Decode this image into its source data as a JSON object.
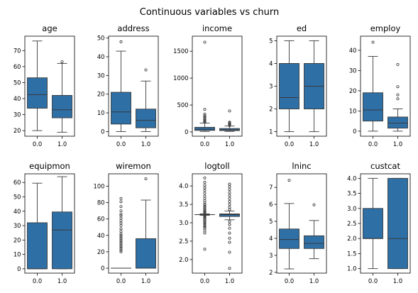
{
  "figure": {
    "title": "Continuous variables vs churn"
  },
  "colors": {
    "box_fill": "#2e6fa6",
    "line": "#3a3a3a",
    "axes": "#000000"
  },
  "chart_data": [
    {
      "type": "box",
      "title": "age",
      "categories": [
        "0.0",
        "1.0"
      ],
      "ylim": [
        16.5,
        79
      ],
      "yticks": [
        20,
        30,
        40,
        50,
        60,
        70
      ],
      "boxes": [
        {
          "whislo": 20,
          "q1": 34,
          "med": 42.5,
          "q3": 53,
          "whishi": 76,
          "fliers": []
        },
        {
          "whislo": 19,
          "q1": 28,
          "med": 33,
          "q3": 42,
          "whishi": 62,
          "fliers": [
            63
          ]
        }
      ]
    },
    {
      "type": "box",
      "title": "address",
      "categories": [
        "0.0",
        "1.0"
      ],
      "ylim": [
        -2.5,
        51
      ],
      "yticks": [
        0,
        10,
        20,
        30,
        40,
        50
      ],
      "boxes": [
        {
          "whislo": 0,
          "q1": 4,
          "med": 10.5,
          "q3": 21,
          "whishi": 43,
          "fliers": [
            48
          ]
        },
        {
          "whislo": 0,
          "q1": 2,
          "med": 6,
          "q3": 12,
          "whishi": 27,
          "fliers": [
            33
          ]
        }
      ]
    },
    {
      "type": "box",
      "title": "income",
      "categories": [
        "0.0",
        "1.0"
      ],
      "ylim": [
        -80,
        1780
      ],
      "yticks": [
        0,
        500,
        1000,
        1500
      ],
      "boxes": [
        {
          "whislo": 9,
          "q1": 28,
          "med": 50,
          "q3": 86,
          "whishi": 165,
          "fliers": [
            180,
            195,
            210,
            230,
            250,
            275,
            300,
            330,
            420,
            1668
          ]
        },
        {
          "whislo": 9,
          "q1": 25,
          "med": 38,
          "q3": 63,
          "whishi": 110,
          "fliers": [
            120,
            135,
            150,
            165,
            180,
            390
          ]
        }
      ]
    },
    {
      "type": "box",
      "title": "ed",
      "categories": [
        "0.0",
        "1.0"
      ],
      "ylim": [
        0.8,
        5.2
      ],
      "yticks": [
        1,
        2,
        3,
        4,
        5
      ],
      "boxes": [
        {
          "whislo": 1,
          "q1": 2,
          "med": 2.5,
          "q3": 4,
          "whishi": 5,
          "fliers": []
        },
        {
          "whislo": 1,
          "q1": 2,
          "med": 3,
          "q3": 4,
          "whishi": 5,
          "fliers": []
        }
      ]
    },
    {
      "type": "box",
      "title": "employ",
      "categories": [
        "0.0",
        "1.0"
      ],
      "ylim": [
        -2.5,
        47
      ],
      "yticks": [
        0,
        10,
        20,
        30,
        40
      ],
      "boxes": [
        {
          "whislo": 0,
          "q1": 5,
          "med": 10.5,
          "q3": 19,
          "whishi": 37,
          "fliers": [
            44
          ]
        },
        {
          "whislo": 0,
          "q1": 1.5,
          "med": 4,
          "q3": 7,
          "whishi": 11,
          "fliers": [
            16,
            18,
            22,
            33
          ]
        }
      ]
    },
    {
      "type": "box",
      "title": "equipmon",
      "categories": [
        "0.0",
        "1.0"
      ],
      "ylim": [
        -3,
        66
      ],
      "yticks": [
        0,
        10,
        20,
        30,
        40,
        50,
        60
      ],
      "boxes": [
        {
          "whislo": 0,
          "q1": 0,
          "med": 0,
          "q3": 32,
          "whishi": 59.5,
          "fliers": []
        },
        {
          "whislo": 0,
          "q1": 0,
          "med": 27,
          "q3": 39.5,
          "whishi": 64,
          "fliers": []
        }
      ]
    },
    {
      "type": "box",
      "title": "wiremon",
      "categories": [
        "0.0",
        "1.0"
      ],
      "ylim": [
        -6,
        115
      ],
      "yticks": [
        0,
        20,
        40,
        60,
        80,
        100
      ],
      "boxes": [
        {
          "whislo": 0,
          "q1": 0,
          "med": 0,
          "q3": 0,
          "whishi": 0,
          "fliers": [
            20,
            22,
            24,
            26,
            28,
            30,
            32,
            34,
            36,
            38,
            40,
            42,
            45,
            48,
            52,
            55,
            58,
            61,
            64,
            66,
            70,
            75,
            81,
            85
          ]
        },
        {
          "whislo": 0,
          "q1": 0,
          "med": 0,
          "q3": 36,
          "whishi": 83,
          "fliers": [
            109
          ]
        }
      ]
    },
    {
      "type": "box",
      "title": "logtoll",
      "categories": [
        "0.0",
        "1.0"
      ],
      "ylim": [
        1.63,
        4.33
      ],
      "yticks": [
        2.0,
        2.5,
        3.0,
        3.5,
        4.0
      ],
      "tick_format": "1dp",
      "boxes": [
        {
          "whislo": 3.2,
          "q1": 3.22,
          "med": 3.22,
          "q3": 3.22,
          "whishi": 3.24,
          "fliers": [
            2.28,
            2.72,
            2.78,
            2.84,
            2.88,
            2.92,
            2.96,
            3.0,
            3.03,
            3.06,
            3.09,
            3.12,
            3.15,
            3.17,
            3.19,
            3.26,
            3.28,
            3.3,
            3.33,
            3.36,
            3.39,
            3.42,
            3.45,
            3.49,
            3.54,
            3.6,
            3.66,
            3.72,
            3.8,
            3.88,
            3.95,
            4.02,
            4.1,
            4.22
          ]
        },
        {
          "whislo": 3.08,
          "q1": 3.17,
          "med": 3.22,
          "q3": 3.24,
          "whishi": 3.32,
          "fliers": [
            1.76,
            2.2,
            2.47,
            2.58,
            2.72,
            2.85,
            2.95,
            3.03,
            3.36,
            3.42,
            3.5,
            3.58,
            3.66,
            3.74,
            3.82,
            3.9,
            3.98,
            4.05
          ]
        }
      ]
    },
    {
      "type": "box",
      "title": "lninc",
      "categories": [
        "0.0",
        "1.0"
      ],
      "ylim": [
        1.95,
        7.8
      ],
      "yticks": [
        2,
        3,
        4,
        5,
        6,
        7
      ],
      "boxes": [
        {
          "whislo": 2.2,
          "q1": 3.4,
          "med": 3.93,
          "q3": 4.55,
          "whishi": 6.05,
          "fliers": [
            7.42
          ]
        },
        {
          "whislo": 2.8,
          "q1": 3.4,
          "med": 3.7,
          "q3": 4.15,
          "whishi": 5.05,
          "fliers": [
            5.97
          ]
        }
      ]
    },
    {
      "type": "box",
      "title": "custcat",
      "categories": [
        "0.0",
        "1.0"
      ],
      "ylim": [
        0.85,
        4.15
      ],
      "yticks": [
        1.0,
        1.5,
        2.0,
        2.5,
        3.0,
        3.5,
        4.0
      ],
      "tick_format": "1dp",
      "boxes": [
        {
          "whislo": 1,
          "q1": 2,
          "med": 2,
          "q3": 3,
          "whishi": 4,
          "fliers": []
        },
        {
          "whislo": 1,
          "q1": 1,
          "med": 2,
          "q3": 4,
          "whishi": 4,
          "fliers": []
        }
      ]
    }
  ]
}
